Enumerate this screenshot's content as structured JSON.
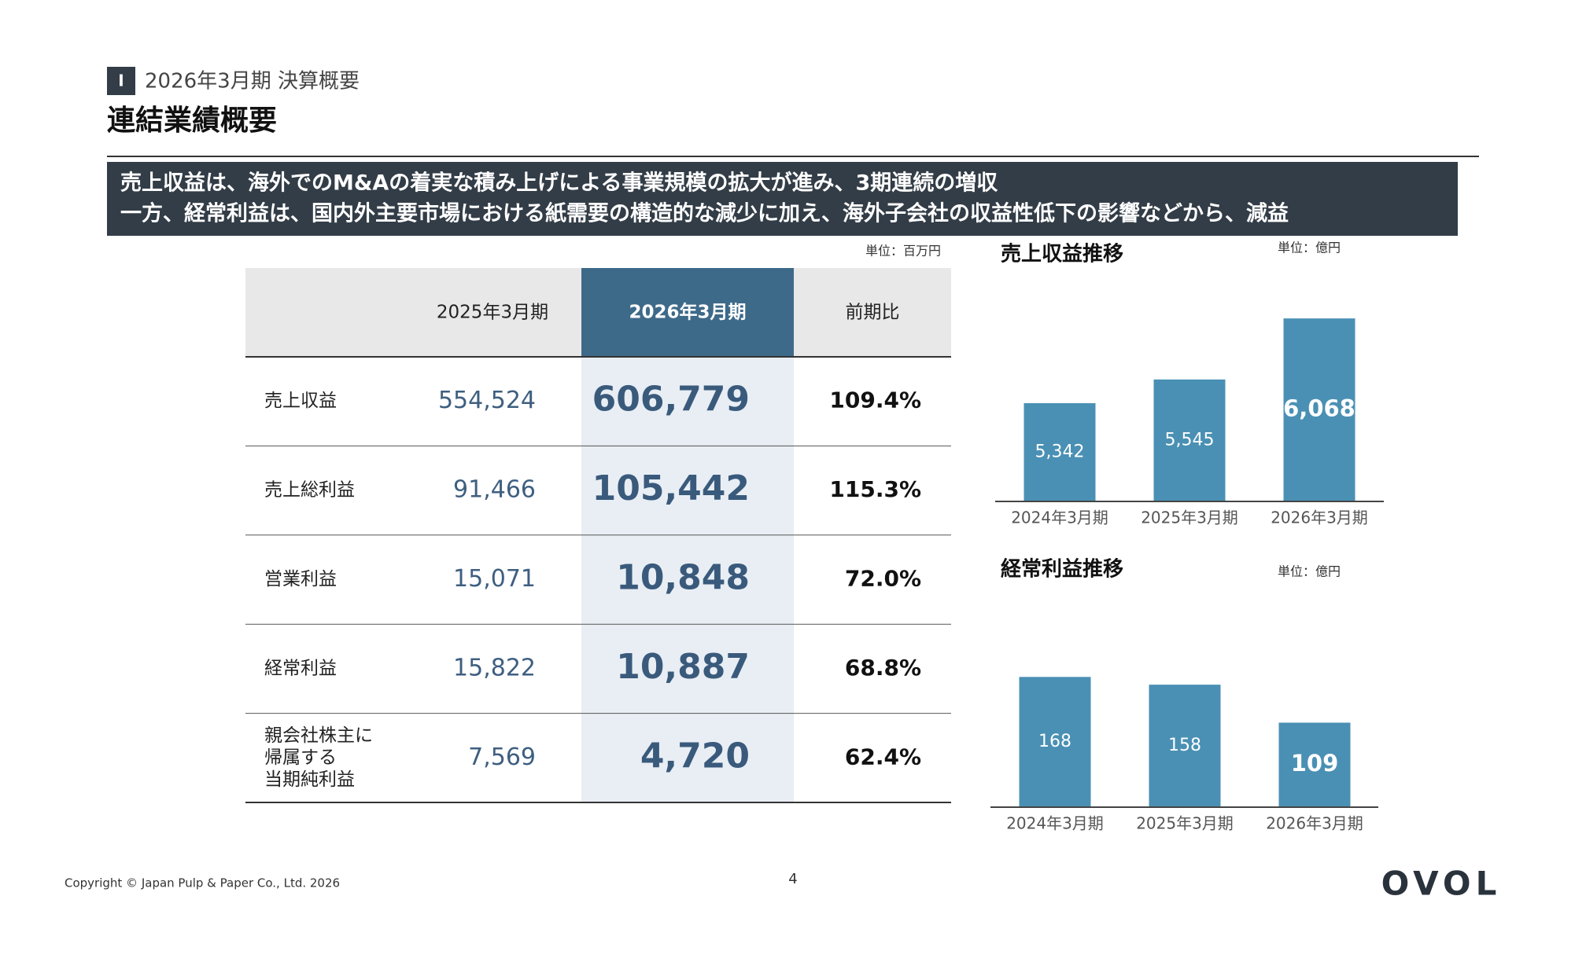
{
  "header": {
    "section_mark": "I",
    "section": "2026年3月期 決算概要",
    "title": "連結業績概要"
  },
  "summary": [
    "売上収益は、海外でのM&Aの着実な積み上げによる事業規模の拡大が進み、3期連続の増収",
    "一方、経常利益は、国内外主要市場における紙需要の構造的な減少に加え、海外子会社の収益性低下の影響などから、減益"
  ],
  "table": {
    "unit": "単位：百万円",
    "headers": [
      "2025年3月期",
      "2026年3月期",
      "前期比"
    ],
    "rows": [
      {
        "label": [
          "売上収益"
        ],
        "prev": "554,524",
        "curr": "606,779",
        "ratio": "109.4%"
      },
      {
        "label": [
          "売上総利益"
        ],
        "prev": "91,466",
        "curr": "105,442",
        "ratio": "115.3%"
      },
      {
        "label": [
          "営業利益"
        ],
        "prev": "15,071",
        "curr": "10,848",
        "ratio": "72.0%"
      },
      {
        "label": [
          "経常利益"
        ],
        "prev": "15,822",
        "curr": "10,887",
        "ratio": "68.8%"
      },
      {
        "label": [
          "親会社株主に",
          "帰属する",
          "当期純利益"
        ],
        "prev": "7,569",
        "curr": "4,720",
        "ratio": "62.4%"
      }
    ]
  },
  "chart_data": [
    {
      "type": "bar",
      "title": "売上収益推移",
      "subtitle": "単位：億円",
      "categories": [
        "2024年3月期",
        "2025年3月期",
        "2026年3月期"
      ],
      "values": [
        5342,
        5545,
        6068
      ],
      "value_labels": [
        "5,342",
        "5,545",
        "6,068"
      ],
      "color": "#4a90b4",
      "ylim": [
        4500,
        6500
      ]
    },
    {
      "type": "bar",
      "title": "経常利益推移",
      "subtitle": "単位：億円",
      "categories": [
        "2024年3月期",
        "2025年3月期",
        "2026年3月期"
      ],
      "values": [
        168,
        158,
        109
      ],
      "color": "#4a90b4",
      "ylim": [
        0,
        220
      ]
    }
  ],
  "footer": {
    "copyright": "Copyright © Japan Pulp & Paper Co., Ltd. 2026",
    "page": "4",
    "logo": "OVOL"
  }
}
